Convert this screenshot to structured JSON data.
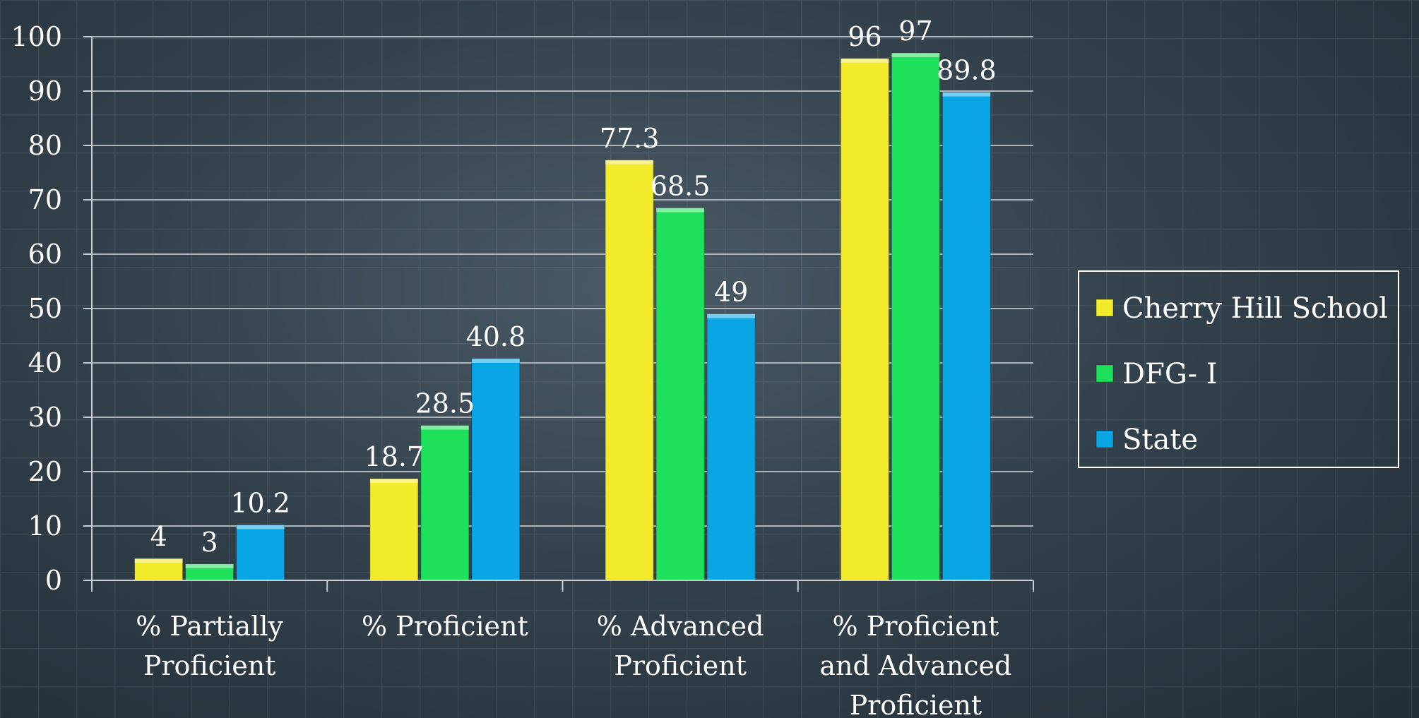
{
  "chart_data": {
    "type": "bar",
    "categories": [
      [
        "% Partially",
        "Proficient"
      ],
      [
        "% Proficient"
      ],
      [
        "% Advanced",
        "Proficient"
      ],
      [
        "% Proficient",
        "and Advanced",
        "Proficient"
      ]
    ],
    "series": [
      {
        "name": "Cherry Hill School",
        "values": [
          4,
          18.7,
          77.3,
          96
        ],
        "labels": [
          "4",
          "18.7",
          "77.3",
          "96"
        ],
        "color": "#f2ec2c"
      },
      {
        "name": "DFG- I",
        "values": [
          3,
          28.5,
          68.5,
          97
        ],
        "labels": [
          "3",
          "28.5",
          "68.5",
          "97"
        ],
        "color": "#1ee05a"
      },
      {
        "name": "State",
        "values": [
          10.2,
          40.8,
          49,
          89.8
        ],
        "labels": [
          "10.2",
          "40.8",
          "49",
          "89.8"
        ],
        "color": "#0aa6e4"
      }
    ],
    "yticks": [
      "0",
      "10",
      "20",
      "30",
      "40",
      "50",
      "60",
      "70",
      "80",
      "90",
      "100"
    ],
    "ylim": [
      0,
      100
    ],
    "title": "",
    "xlabel": "",
    "ylabel": "",
    "grid": true,
    "legend_position": "right",
    "colors": {
      "axis": "#c9cfd4",
      "gridline": "#aeb6bc",
      "text": "#ffffff",
      "legend_border": "#ffffff"
    }
  }
}
